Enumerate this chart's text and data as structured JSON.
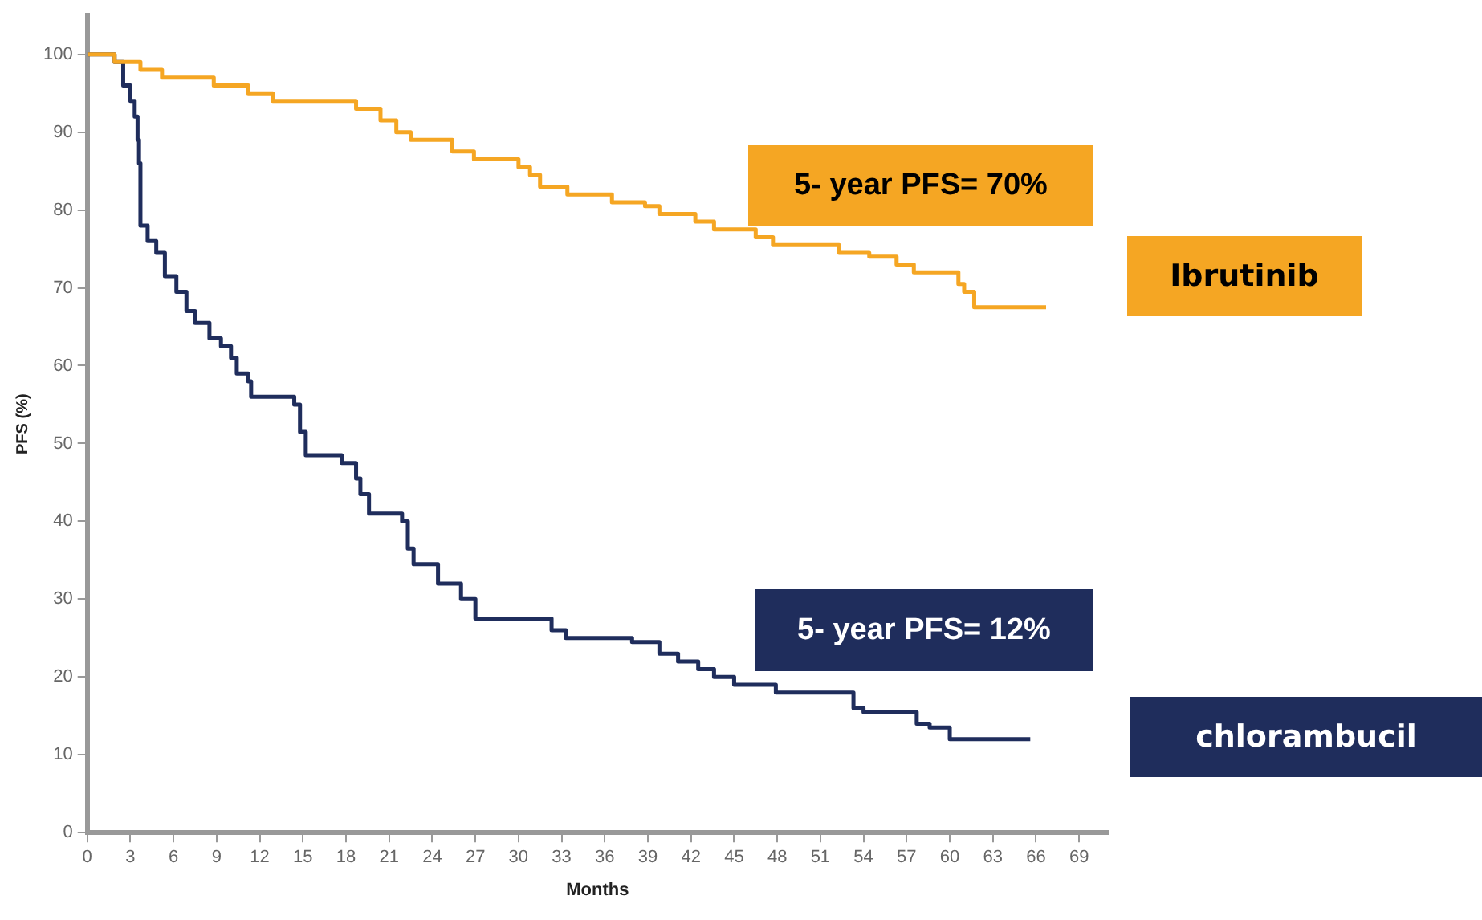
{
  "chart_data": {
    "type": "step",
    "xlabel": "Months",
    "ylabel": "PFS (%)",
    "xlim": [
      0,
      71
    ],
    "ylim": [
      0,
      105
    ],
    "xticks": [
      0,
      3,
      6,
      9,
      12,
      15,
      18,
      21,
      24,
      27,
      30,
      33,
      36,
      39,
      42,
      45,
      48,
      51,
      54,
      57,
      60,
      63,
      66,
      69
    ],
    "yticks": [
      0,
      10,
      20,
      30,
      40,
      50,
      60,
      70,
      80,
      90,
      100
    ],
    "grid": false,
    "legend": "right",
    "marker": "none",
    "line_style": "solid",
    "annotations": [
      "5- year PFS= 70%",
      "5- year PFS= 12%"
    ],
    "series": [
      {
        "name": "Ibrutinib",
        "color": "#f5a623",
        "x": [
          0,
          1.9,
          3.7,
          5.2,
          8.8,
          11.2,
          12.9,
          18.7,
          20.4,
          21.5,
          22.5,
          25.4,
          26.9,
          30,
          30.8,
          31.5,
          33.4,
          36.5,
          38.8,
          39.8,
          42.3,
          43.6,
          46.5,
          47.7,
          52.3,
          54.4,
          56.3,
          57.5,
          60.6,
          61,
          61.7,
          66.7
        ],
        "values": [
          100,
          99,
          98,
          97,
          96,
          95,
          94,
          93,
          91.5,
          90,
          89,
          87.5,
          86.5,
          85.5,
          84.5,
          83,
          82,
          81,
          80.5,
          79.5,
          78.5,
          77.5,
          76.5,
          75.5,
          74.5,
          74,
          73,
          72,
          70.5,
          69.5,
          67.5,
          67.5
        ]
      },
      {
        "name": "chlorambucil",
        "color": "#1f2d5c",
        "x": [
          0,
          1.9,
          2.5,
          3.0,
          3.3,
          3.5,
          3.6,
          3.7,
          4.2,
          4.8,
          5.4,
          6.2,
          6.9,
          7.5,
          8.5,
          9.3,
          10.0,
          10.4,
          11.2,
          11.4,
          14.4,
          14.8,
          15.2,
          17.7,
          18.7,
          19.0,
          19.6,
          21.9,
          22.3,
          22.7,
          24.4,
          26,
          27,
          32.3,
          33.3,
          37.9,
          39.8,
          41.1,
          42.5,
          43.6,
          45,
          47.9,
          53.3,
          54,
          57.7,
          58.6,
          60,
          65.6
        ],
        "values": [
          100,
          99,
          96,
          94,
          92,
          89,
          86,
          78,
          76,
          74.5,
          71.5,
          69.5,
          67,
          65.5,
          63.5,
          62.5,
          61,
          59,
          58,
          56,
          55,
          51.5,
          48.5,
          47.5,
          45.5,
          43.5,
          41,
          40,
          36.5,
          34.5,
          32,
          30,
          27.5,
          26,
          25,
          24.5,
          23,
          22,
          21,
          20,
          19,
          18,
          16,
          15.5,
          14,
          13.5,
          12,
          12
        ]
      }
    ]
  }
}
